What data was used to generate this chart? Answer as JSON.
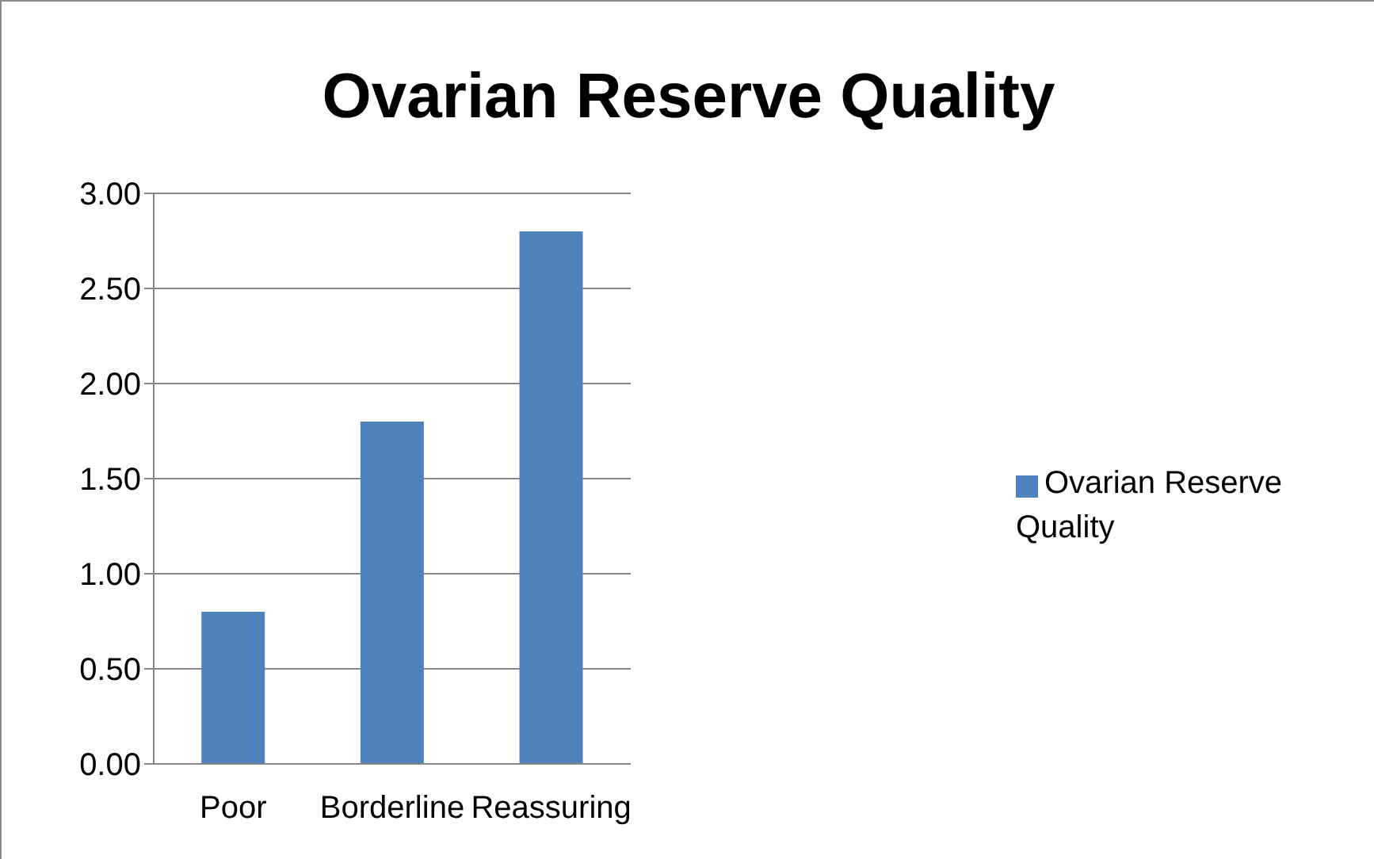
{
  "chart_data": {
    "type": "bar",
    "title": "Ovarian Reserve Quality",
    "categories": [
      "Poor",
      "Borderline",
      "Reassuring"
    ],
    "series": [
      {
        "name": "Ovarian Reserve Quality",
        "color": "#4f81bd",
        "values": [
          0.8,
          1.8,
          2.8
        ]
      }
    ],
    "ylim": [
      0,
      3
    ],
    "yticks": [
      {
        "value": 0,
        "label": "0.00"
      },
      {
        "value": 0.5,
        "label": "0.50"
      },
      {
        "value": 1,
        "label": "1.00"
      },
      {
        "value": 1.5,
        "label": "1.50"
      },
      {
        "value": 2,
        "label": "2.00"
      },
      {
        "value": 2.5,
        "label": "2.50"
      },
      {
        "value": 3,
        "label": "3.00"
      }
    ],
    "grid": "y",
    "legend": "right"
  }
}
